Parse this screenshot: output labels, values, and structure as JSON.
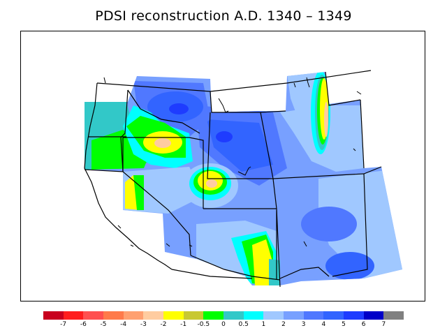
{
  "title": "PDSI reconstruction A.D. 1340 – 1349",
  "colorbar": {
    "colors": [
      "#c8001e",
      "#ff1e1e",
      "#ff5050",
      "#ff7a4a",
      "#ffa070",
      "#ffcca0",
      "#ffff00",
      "#c8c832",
      "#00ff00",
      "#32c8c8",
      "#00ffff",
      "#a0c8ff",
      "#78a0ff",
      "#5078ff",
      "#3264ff",
      "#1e3cff",
      "#0000c8",
      "#808080"
    ],
    "labels": [
      "-7",
      "-6",
      "-5",
      "-4",
      "-3",
      "-2",
      "-1",
      "-0.5",
      "0",
      "0.5",
      "1",
      "2",
      "3",
      "4",
      "5",
      "6",
      "7"
    ]
  },
  "legend": {
    "level_colors": {
      "above_7": "#808080",
      "6_to_7": "#0000c8",
      "5_to_6": "#1e3cff",
      "4_to_5": "#3264ff",
      "3_to_4": "#5078ff",
      "2_to_3": "#78a0ff",
      "1_to_2": "#a0c8ff",
      "0.5_to_1": "#00ffff",
      "0_to_0.5": "#32c8c8",
      "-0.5_to_0": "#00ff00",
      "-1_to_-0.5": "#c8c832",
      "-2_to_-1": "#ffff00",
      "-3_to_-2": "#ffcca0"
    }
  }
}
